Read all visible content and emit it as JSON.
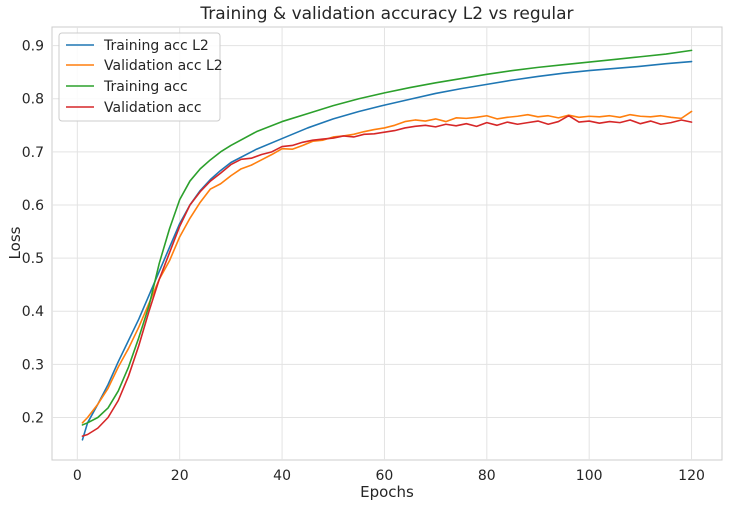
{
  "chart_data": {
    "type": "line",
    "title": "Training & validation accuracy L2 vs regular",
    "xlabel": "Epochs",
    "ylabel": "Loss",
    "xlim": [
      -4.95,
      125.95
    ],
    "ylim": [
      0.12,
      0.935
    ],
    "x_ticks": [
      0,
      20,
      40,
      60,
      80,
      100,
      120
    ],
    "x_tick_labels": [
      "0",
      "20",
      "40",
      "60",
      "80",
      "100",
      "120"
    ],
    "y_ticks": [
      0.2,
      0.3,
      0.4,
      0.5,
      0.6,
      0.7,
      0.8,
      0.9
    ],
    "y_tick_labels": [
      "0.2",
      "0.3",
      "0.4",
      "0.5",
      "0.6",
      "0.7",
      "0.8",
      "0.9"
    ],
    "grid": true,
    "legend_position": "upper-left",
    "series": [
      {
        "name": "Training acc L2",
        "color": "#1f77b4",
        "x": [
          1,
          2,
          4,
          6,
          8,
          10,
          12,
          14,
          16,
          18,
          20,
          22,
          24,
          26,
          28,
          30,
          35,
          40,
          45,
          50,
          55,
          60,
          65,
          70,
          75,
          80,
          85,
          90,
          95,
          100,
          105,
          110,
          115,
          120
        ],
        "y": [
          0.158,
          0.19,
          0.225,
          0.262,
          0.305,
          0.345,
          0.385,
          0.43,
          0.475,
          0.52,
          0.565,
          0.6,
          0.627,
          0.648,
          0.665,
          0.68,
          0.705,
          0.725,
          0.745,
          0.762,
          0.776,
          0.788,
          0.799,
          0.81,
          0.819,
          0.827,
          0.835,
          0.842,
          0.848,
          0.853,
          0.857,
          0.861,
          0.866,
          0.87
        ]
      },
      {
        "name": "Validation acc L2",
        "color": "#ff7f0e",
        "x": [
          1,
          2,
          4,
          6,
          8,
          10,
          12,
          14,
          16,
          18,
          20,
          22,
          24,
          26,
          28,
          30,
          32,
          34,
          36,
          38,
          40,
          42,
          44,
          46,
          48,
          50,
          52,
          54,
          56,
          58,
          60,
          62,
          64,
          66,
          68,
          70,
          72,
          74,
          76,
          78,
          80,
          82,
          84,
          86,
          88,
          90,
          92,
          94,
          96,
          98,
          100,
          102,
          104,
          106,
          108,
          110,
          112,
          114,
          116,
          118,
          120
        ],
        "y": [
          0.19,
          0.2,
          0.225,
          0.255,
          0.295,
          0.33,
          0.37,
          0.415,
          0.46,
          0.495,
          0.54,
          0.575,
          0.605,
          0.63,
          0.64,
          0.655,
          0.668,
          0.675,
          0.685,
          0.695,
          0.706,
          0.705,
          0.712,
          0.72,
          0.722,
          0.728,
          0.73,
          0.733,
          0.738,
          0.742,
          0.745,
          0.75,
          0.757,
          0.76,
          0.758,
          0.762,
          0.757,
          0.764,
          0.763,
          0.765,
          0.768,
          0.762,
          0.765,
          0.767,
          0.77,
          0.766,
          0.768,
          0.764,
          0.769,
          0.765,
          0.767,
          0.766,
          0.768,
          0.765,
          0.77,
          0.767,
          0.766,
          0.768,
          0.765,
          0.763,
          0.776
        ]
      },
      {
        "name": "Training acc",
        "color": "#2ca02c",
        "x": [
          1,
          2,
          4,
          6,
          8,
          10,
          12,
          14,
          16,
          18,
          20,
          22,
          24,
          26,
          28,
          30,
          35,
          40,
          45,
          50,
          55,
          60,
          65,
          70,
          75,
          80,
          85,
          90,
          95,
          100,
          105,
          110,
          115,
          120
        ],
        "y": [
          0.186,
          0.19,
          0.2,
          0.218,
          0.25,
          0.295,
          0.35,
          0.41,
          0.49,
          0.555,
          0.61,
          0.645,
          0.668,
          0.685,
          0.7,
          0.712,
          0.738,
          0.757,
          0.772,
          0.787,
          0.8,
          0.811,
          0.821,
          0.83,
          0.838,
          0.846,
          0.853,
          0.859,
          0.864,
          0.869,
          0.874,
          0.879,
          0.884,
          0.891
        ]
      },
      {
        "name": "Validation acc",
        "color": "#d62728",
        "x": [
          1,
          2,
          4,
          6,
          8,
          10,
          12,
          14,
          16,
          18,
          20,
          22,
          24,
          26,
          28,
          30,
          32,
          34,
          36,
          38,
          40,
          42,
          44,
          46,
          48,
          50,
          52,
          54,
          56,
          58,
          60,
          62,
          64,
          66,
          68,
          70,
          72,
          74,
          76,
          78,
          80,
          82,
          84,
          86,
          88,
          90,
          92,
          94,
          96,
          98,
          100,
          102,
          104,
          106,
          108,
          110,
          112,
          114,
          116,
          118,
          120
        ],
        "y": [
          0.165,
          0.168,
          0.18,
          0.2,
          0.232,
          0.278,
          0.335,
          0.4,
          0.46,
          0.51,
          0.56,
          0.6,
          0.625,
          0.645,
          0.66,
          0.676,
          0.686,
          0.688,
          0.695,
          0.7,
          0.71,
          0.712,
          0.718,
          0.722,
          0.724,
          0.726,
          0.73,
          0.728,
          0.733,
          0.734,
          0.737,
          0.74,
          0.745,
          0.748,
          0.75,
          0.747,
          0.752,
          0.749,
          0.753,
          0.748,
          0.755,
          0.75,
          0.756,
          0.752,
          0.755,
          0.758,
          0.752,
          0.757,
          0.768,
          0.756,
          0.758,
          0.754,
          0.757,
          0.755,
          0.76,
          0.753,
          0.758,
          0.752,
          0.755,
          0.76,
          0.756
        ]
      }
    ]
  }
}
